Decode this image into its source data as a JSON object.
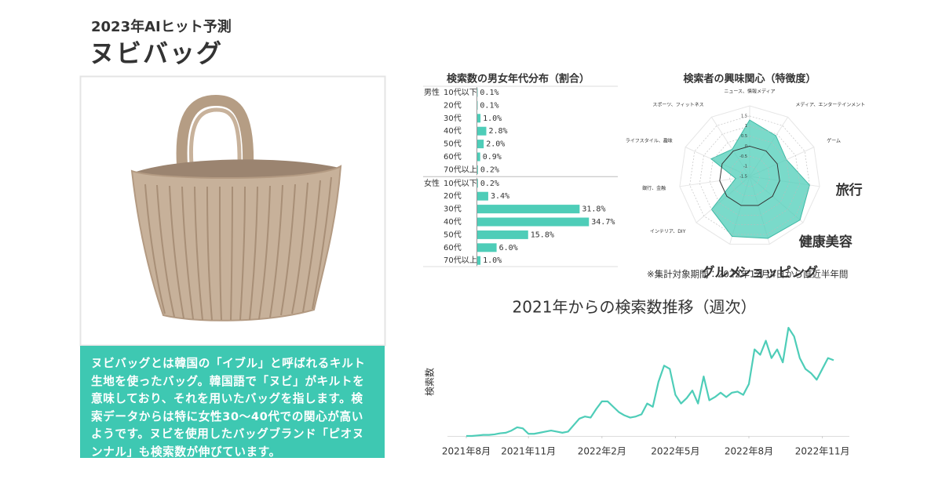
{
  "header": {
    "kicker": "2023年AIヒット予測",
    "title": "ヌビバッグ"
  },
  "description": "ヌビバッグとは韓国の「イブル」と呼ばれるキルト生地を使ったバッグ。韓国語で「ヌビ」がキルトを意味しており、それを用いたバッグを指します。検索データからは特に女性30〜40代での関心が高いようです。ヌビを使用したバッグブランド「ピオヌンナル」も検索数が伸びています。",
  "note": "※集計対象期間：2022年12月4日から直近半年間",
  "chart_data": [
    {
      "type": "bar",
      "orientation": "horizontal",
      "title": "検索数の男女年代分布（割合）",
      "categories": [
        "10代以下",
        "20代",
        "30代",
        "40代",
        "50代",
        "60代",
        "70代以上"
      ],
      "series": [
        {
          "name": "男性",
          "color": "#4ecdb8",
          "values": [
            0.1,
            0.1,
            1.0,
            2.8,
            2.0,
            0.9,
            0.2
          ],
          "value_labels": [
            "0.1%",
            "0.1%",
            "1.0%",
            "2.8%",
            "2.0%",
            "0.9%",
            "0.2%"
          ]
        },
        {
          "name": "女性",
          "color": "#4ecdb8",
          "values": [
            0.2,
            3.4,
            31.8,
            34.7,
            15.8,
            6.0,
            1.0
          ],
          "value_labels": [
            "0.2%",
            "3.4%",
            "31.8%",
            "34.7%",
            "15.8%",
            "6.0%",
            "1.0%"
          ]
        }
      ],
      "xlim": [
        0,
        40
      ]
    },
    {
      "type": "radar",
      "title": "検索者の興味関心（特徴度）",
      "categories": [
        "ニュース、情報メディア",
        "メディア、エンターテインメント",
        "ゲーム",
        "旅行",
        "健康美容",
        "ショッピング",
        "グルメ",
        "インテリア、DIY",
        "銀行、金融",
        "ライフスタイル、趣味",
        "スポーツ、フィットネス"
      ],
      "values": [
        1.3,
        0.9,
        0.5,
        1.5,
        1.8,
        1.7,
        1.6,
        1.0,
        -0.8,
        0.6,
        0.1
      ],
      "highlight": [
        false,
        false,
        false,
        true,
        true,
        true,
        true,
        false,
        false,
        false,
        false
      ],
      "color": "#4ecdb8",
      "rlim": [
        -1.5,
        2
      ],
      "rticks": [
        -1.5,
        -1,
        -0.5,
        0,
        0.5,
        1,
        1.5
      ]
    },
    {
      "type": "line",
      "title": "2021年からの検索数推移（週次）",
      "y_label": "検索数",
      "color": "#4ecdb8",
      "values": [
        0,
        0,
        0.5,
        1,
        1,
        1.5,
        2.5,
        3,
        5,
        8,
        7,
        2,
        2,
        3,
        4,
        5,
        4,
        3,
        4,
        10,
        16,
        18,
        17,
        25,
        32,
        32,
        27,
        22,
        19,
        17,
        18,
        20,
        30,
        27,
        50,
        65,
        62,
        38,
        30,
        35,
        42,
        30,
        55,
        33,
        36,
        40,
        36,
        40,
        41,
        38,
        48,
        80,
        75,
        88,
        72,
        80,
        68,
        100,
        92,
        72,
        62,
        58,
        52,
        62,
        72,
        70
      ],
      "xlim": [
        0,
        65
      ],
      "ylim": [
        0,
        100
      ],
      "xticks": [
        {
          "value": 0,
          "label": "2021年8月"
        },
        {
          "value": 11,
          "label": "2021年11月"
        },
        {
          "value": 24,
          "label": "2022年2月"
        },
        {
          "value": 37,
          "label": "2022年5月"
        },
        {
          "value": 50,
          "label": "2022年8月"
        },
        {
          "value": 63,
          "label": "2022年11月"
        }
      ]
    }
  ]
}
